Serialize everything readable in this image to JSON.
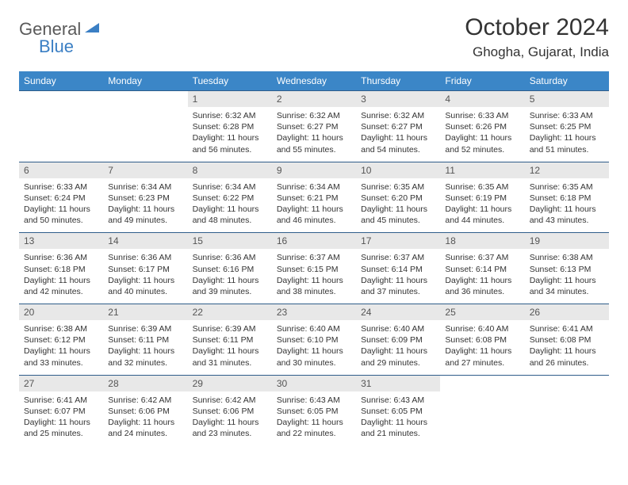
{
  "brand": {
    "part1": "General",
    "part2": "Blue"
  },
  "title": "October 2024",
  "location": "Ghogha, Gujarat, India",
  "colors": {
    "header_bg": "#3b86c7",
    "header_text": "#ffffff",
    "daynum_bg": "#e8e8e8",
    "week_border": "#2f5d8a",
    "logo_gray": "#5a5a5a",
    "logo_blue": "#3b7fc4"
  },
  "day_headers": [
    "Sunday",
    "Monday",
    "Tuesday",
    "Wednesday",
    "Thursday",
    "Friday",
    "Saturday"
  ],
  "weeks": [
    [
      null,
      null,
      {
        "n": "1",
        "sr": "6:32 AM",
        "ss": "6:28 PM",
        "dl": "11 hours and 56 minutes."
      },
      {
        "n": "2",
        "sr": "6:32 AM",
        "ss": "6:27 PM",
        "dl": "11 hours and 55 minutes."
      },
      {
        "n": "3",
        "sr": "6:32 AM",
        "ss": "6:27 PM",
        "dl": "11 hours and 54 minutes."
      },
      {
        "n": "4",
        "sr": "6:33 AM",
        "ss": "6:26 PM",
        "dl": "11 hours and 52 minutes."
      },
      {
        "n": "5",
        "sr": "6:33 AM",
        "ss": "6:25 PM",
        "dl": "11 hours and 51 minutes."
      }
    ],
    [
      {
        "n": "6",
        "sr": "6:33 AM",
        "ss": "6:24 PM",
        "dl": "11 hours and 50 minutes."
      },
      {
        "n": "7",
        "sr": "6:34 AM",
        "ss": "6:23 PM",
        "dl": "11 hours and 49 minutes."
      },
      {
        "n": "8",
        "sr": "6:34 AM",
        "ss": "6:22 PM",
        "dl": "11 hours and 48 minutes."
      },
      {
        "n": "9",
        "sr": "6:34 AM",
        "ss": "6:21 PM",
        "dl": "11 hours and 46 minutes."
      },
      {
        "n": "10",
        "sr": "6:35 AM",
        "ss": "6:20 PM",
        "dl": "11 hours and 45 minutes."
      },
      {
        "n": "11",
        "sr": "6:35 AM",
        "ss": "6:19 PM",
        "dl": "11 hours and 44 minutes."
      },
      {
        "n": "12",
        "sr": "6:35 AM",
        "ss": "6:18 PM",
        "dl": "11 hours and 43 minutes."
      }
    ],
    [
      {
        "n": "13",
        "sr": "6:36 AM",
        "ss": "6:18 PM",
        "dl": "11 hours and 42 minutes."
      },
      {
        "n": "14",
        "sr": "6:36 AM",
        "ss": "6:17 PM",
        "dl": "11 hours and 40 minutes."
      },
      {
        "n": "15",
        "sr": "6:36 AM",
        "ss": "6:16 PM",
        "dl": "11 hours and 39 minutes."
      },
      {
        "n": "16",
        "sr": "6:37 AM",
        "ss": "6:15 PM",
        "dl": "11 hours and 38 minutes."
      },
      {
        "n": "17",
        "sr": "6:37 AM",
        "ss": "6:14 PM",
        "dl": "11 hours and 37 minutes."
      },
      {
        "n": "18",
        "sr": "6:37 AM",
        "ss": "6:14 PM",
        "dl": "11 hours and 36 minutes."
      },
      {
        "n": "19",
        "sr": "6:38 AM",
        "ss": "6:13 PM",
        "dl": "11 hours and 34 minutes."
      }
    ],
    [
      {
        "n": "20",
        "sr": "6:38 AM",
        "ss": "6:12 PM",
        "dl": "11 hours and 33 minutes."
      },
      {
        "n": "21",
        "sr": "6:39 AM",
        "ss": "6:11 PM",
        "dl": "11 hours and 32 minutes."
      },
      {
        "n": "22",
        "sr": "6:39 AM",
        "ss": "6:11 PM",
        "dl": "11 hours and 31 minutes."
      },
      {
        "n": "23",
        "sr": "6:40 AM",
        "ss": "6:10 PM",
        "dl": "11 hours and 30 minutes."
      },
      {
        "n": "24",
        "sr": "6:40 AM",
        "ss": "6:09 PM",
        "dl": "11 hours and 29 minutes."
      },
      {
        "n": "25",
        "sr": "6:40 AM",
        "ss": "6:08 PM",
        "dl": "11 hours and 27 minutes."
      },
      {
        "n": "26",
        "sr": "6:41 AM",
        "ss": "6:08 PM",
        "dl": "11 hours and 26 minutes."
      }
    ],
    [
      {
        "n": "27",
        "sr": "6:41 AM",
        "ss": "6:07 PM",
        "dl": "11 hours and 25 minutes."
      },
      {
        "n": "28",
        "sr": "6:42 AM",
        "ss": "6:06 PM",
        "dl": "11 hours and 24 minutes."
      },
      {
        "n": "29",
        "sr": "6:42 AM",
        "ss": "6:06 PM",
        "dl": "11 hours and 23 minutes."
      },
      {
        "n": "30",
        "sr": "6:43 AM",
        "ss": "6:05 PM",
        "dl": "11 hours and 22 minutes."
      },
      {
        "n": "31",
        "sr": "6:43 AM",
        "ss": "6:05 PM",
        "dl": "11 hours and 21 minutes."
      },
      null,
      null
    ]
  ],
  "labels": {
    "sunrise": "Sunrise: ",
    "sunset": "Sunset: ",
    "daylight": "Daylight: "
  }
}
